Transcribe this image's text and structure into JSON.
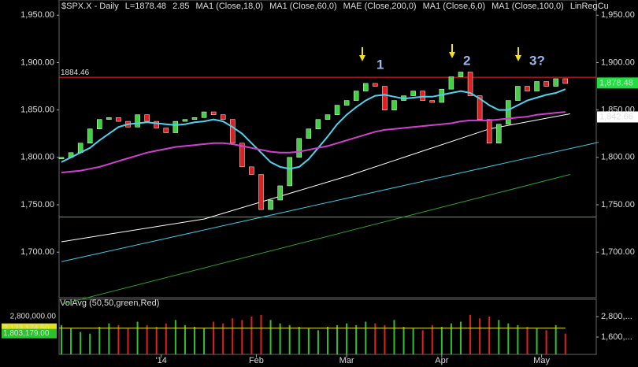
{
  "chart_data": [
    {
      "type": "line",
      "title": "$SPX.X - Daily",
      "last": "L=1878.48",
      "change": "2.85",
      "legend_extra": [
        "MAE (Close,200,0)",
        "MA1 (Close,6,0)",
        "MA1 (Close,100,0)",
        "LinRegCu"
      ],
      "x": [
        0,
        2,
        4,
        6,
        8,
        10,
        12,
        14,
        16,
        18,
        20,
        22,
        24,
        26,
        28,
        30,
        32,
        34,
        36,
        38,
        40,
        42,
        44,
        46,
        48,
        50,
        52,
        54,
        56,
        58,
        60,
        62,
        64,
        66,
        68,
        70,
        72,
        74,
        76,
        78,
        80,
        82,
        84,
        86,
        88,
        90,
        92,
        94,
        96,
        98,
        100,
        102,
        104,
        106
      ],
      "xlim": [
        0,
        113
      ],
      "xticks": [
        {
          "value": 21,
          "label": "'14"
        },
        {
          "value": 41,
          "label": "Feb"
        },
        {
          "value": 60,
          "label": "Mar"
        },
        {
          "value": 80,
          "label": "Apr"
        },
        {
          "value": 101,
          "label": "May"
        }
      ],
      "ylim": [
        1652,
        1966
      ],
      "yticks": [
        {
          "value": 1700,
          "label": "1,700.00"
        },
        {
          "value": 1750,
          "label": "1,750.00"
        },
        {
          "value": 1800,
          "label": "1,800.00"
        },
        {
          "value": 1850,
          "label": "1,850.00"
        },
        {
          "value": 1900,
          "label": "1,900.00"
        },
        {
          "value": 1950,
          "label": "1,950.00"
        }
      ],
      "series": [
        {
          "color": "#ffffff",
          "values": [
            1800,
            1805,
            1815,
            1830,
            1840,
            1842,
            1838,
            1832,
            1845,
            1838,
            1831,
            1826,
            1838,
            1840,
            1842,
            1848,
            1845,
            1840,
            1815,
            1790,
            1782,
            1745,
            1755,
            1770,
            1800,
            1820,
            1830,
            1840,
            1845,
            1855,
            1860,
            1870,
            1878,
            1875,
            1850,
            1860,
            1865,
            1870,
            1860,
            1858,
            1872,
            1885,
            1890,
            1865,
            1840,
            1815,
            1835,
            1860,
            1875,
            1870,
            1880,
            1875,
            1883,
            1878
          ]
        },
        {
          "name": "MA1 (Close,18,0)",
          "color": "#4fd2f0",
          "values": [
            1795,
            1800,
            1805,
            1810,
            1818,
            1825,
            1832,
            1835,
            1836,
            1837,
            1836,
            1835,
            1834,
            1835,
            1837,
            1838,
            1840,
            1838,
            1832,
            1825,
            1815,
            1805,
            1795,
            1790,
            1788,
            1790,
            1798,
            1810,
            1822,
            1835,
            1845,
            1853,
            1860,
            1865,
            1866,
            1864,
            1862,
            1863,
            1864,
            1864,
            1866,
            1868,
            1870,
            1868,
            1862,
            1855,
            1850,
            1850,
            1855,
            1860,
            1863,
            1866,
            1868,
            1872
          ]
        },
        {
          "name": "MA1 (Close,60,0)",
          "color": "#d040d0",
          "values": [
            1784,
            1785,
            1786,
            1788,
            1790,
            1793,
            1796,
            1799,
            1802,
            1805,
            1807,
            1809,
            1811,
            1812,
            1813,
            1814,
            1815,
            1815,
            1814,
            1812,
            1810,
            1808,
            1806,
            1805,
            1805,
            1806,
            1808,
            1810,
            1812,
            1815,
            1818,
            1821,
            1824,
            1827,
            1829,
            1830,
            1831,
            1832,
            1833,
            1834,
            1835,
            1836,
            1838,
            1839,
            1839,
            1839,
            1840,
            1841,
            1842,
            1843,
            1845,
            1846,
            1847,
            1848
          ]
        }
      ],
      "trend_lines": [
        {
          "color": "#ffffff",
          "x": [
            0,
            30,
            60,
            90,
            107
          ],
          "values": [
            1711,
            1735,
            1780,
            1830,
            1846
          ]
        },
        {
          "color": "#3cc8e0",
          "x": [
            0,
            113
          ],
          "values": [
            1690,
            1816
          ]
        },
        {
          "color": "#2fa02f",
          "x": [
            0,
            107
          ],
          "values": [
            1645,
            1782
          ]
        }
      ],
      "hlines": [
        {
          "color": "#ff2020",
          "value": 1884.46,
          "label": "1884.46"
        },
        {
          "color": "#40c040",
          "value": 1737
        }
      ],
      "price_labels": [
        {
          "value": 1878.48,
          "label": "1,878.48",
          "color": "#20e040"
        },
        {
          "value": 1842.66,
          "label": "1,842.66",
          "color": "#ffffff"
        }
      ],
      "annotations": [
        "1",
        "2",
        "3?"
      ]
    },
    {
      "type": "bar",
      "title": "VolAvg (50,50,green,Red)",
      "values": [
        2300000,
        2100000,
        1900000,
        1800000,
        2200000,
        2400000,
        2300000,
        2100000,
        2500000,
        2300000,
        2200000,
        2400000,
        2600000,
        2300000,
        2200000,
        2100000,
        2500000,
        2400000,
        2700000,
        2600000,
        2800000,
        2900000,
        2600000,
        2400000,
        2300000,
        2200000,
        2100000,
        2000000,
        2200000,
        2300000,
        2400000,
        2300000,
        2500000,
        2400000,
        2300000,
        2600000,
        2200000,
        2100000,
        2000000,
        2300000,
        2200000,
        2400000,
        2500000,
        2900000,
        2700000,
        2800000,
        2600000,
        2400000,
        2300000,
        2200000,
        2100000,
        2000000,
        2300000,
        1803179
      ],
      "avg": 2123174.5,
      "avg_label": "2,123,174.50",
      "last_label": "1,803,179.00",
      "ylim": [
        584615,
        3815385
      ],
      "yticks": [
        {
          "value": 1600000,
          "label": "1,600,..."
        },
        {
          "value": 2800000,
          "label": "2,800,..."
        }
      ],
      "left_ticks": [
        {
          "value": 2800000,
          "label": "2,800,000.00"
        }
      ],
      "colors": {
        "up": "#2fc02f",
        "down": "#e02020"
      }
    }
  ]
}
